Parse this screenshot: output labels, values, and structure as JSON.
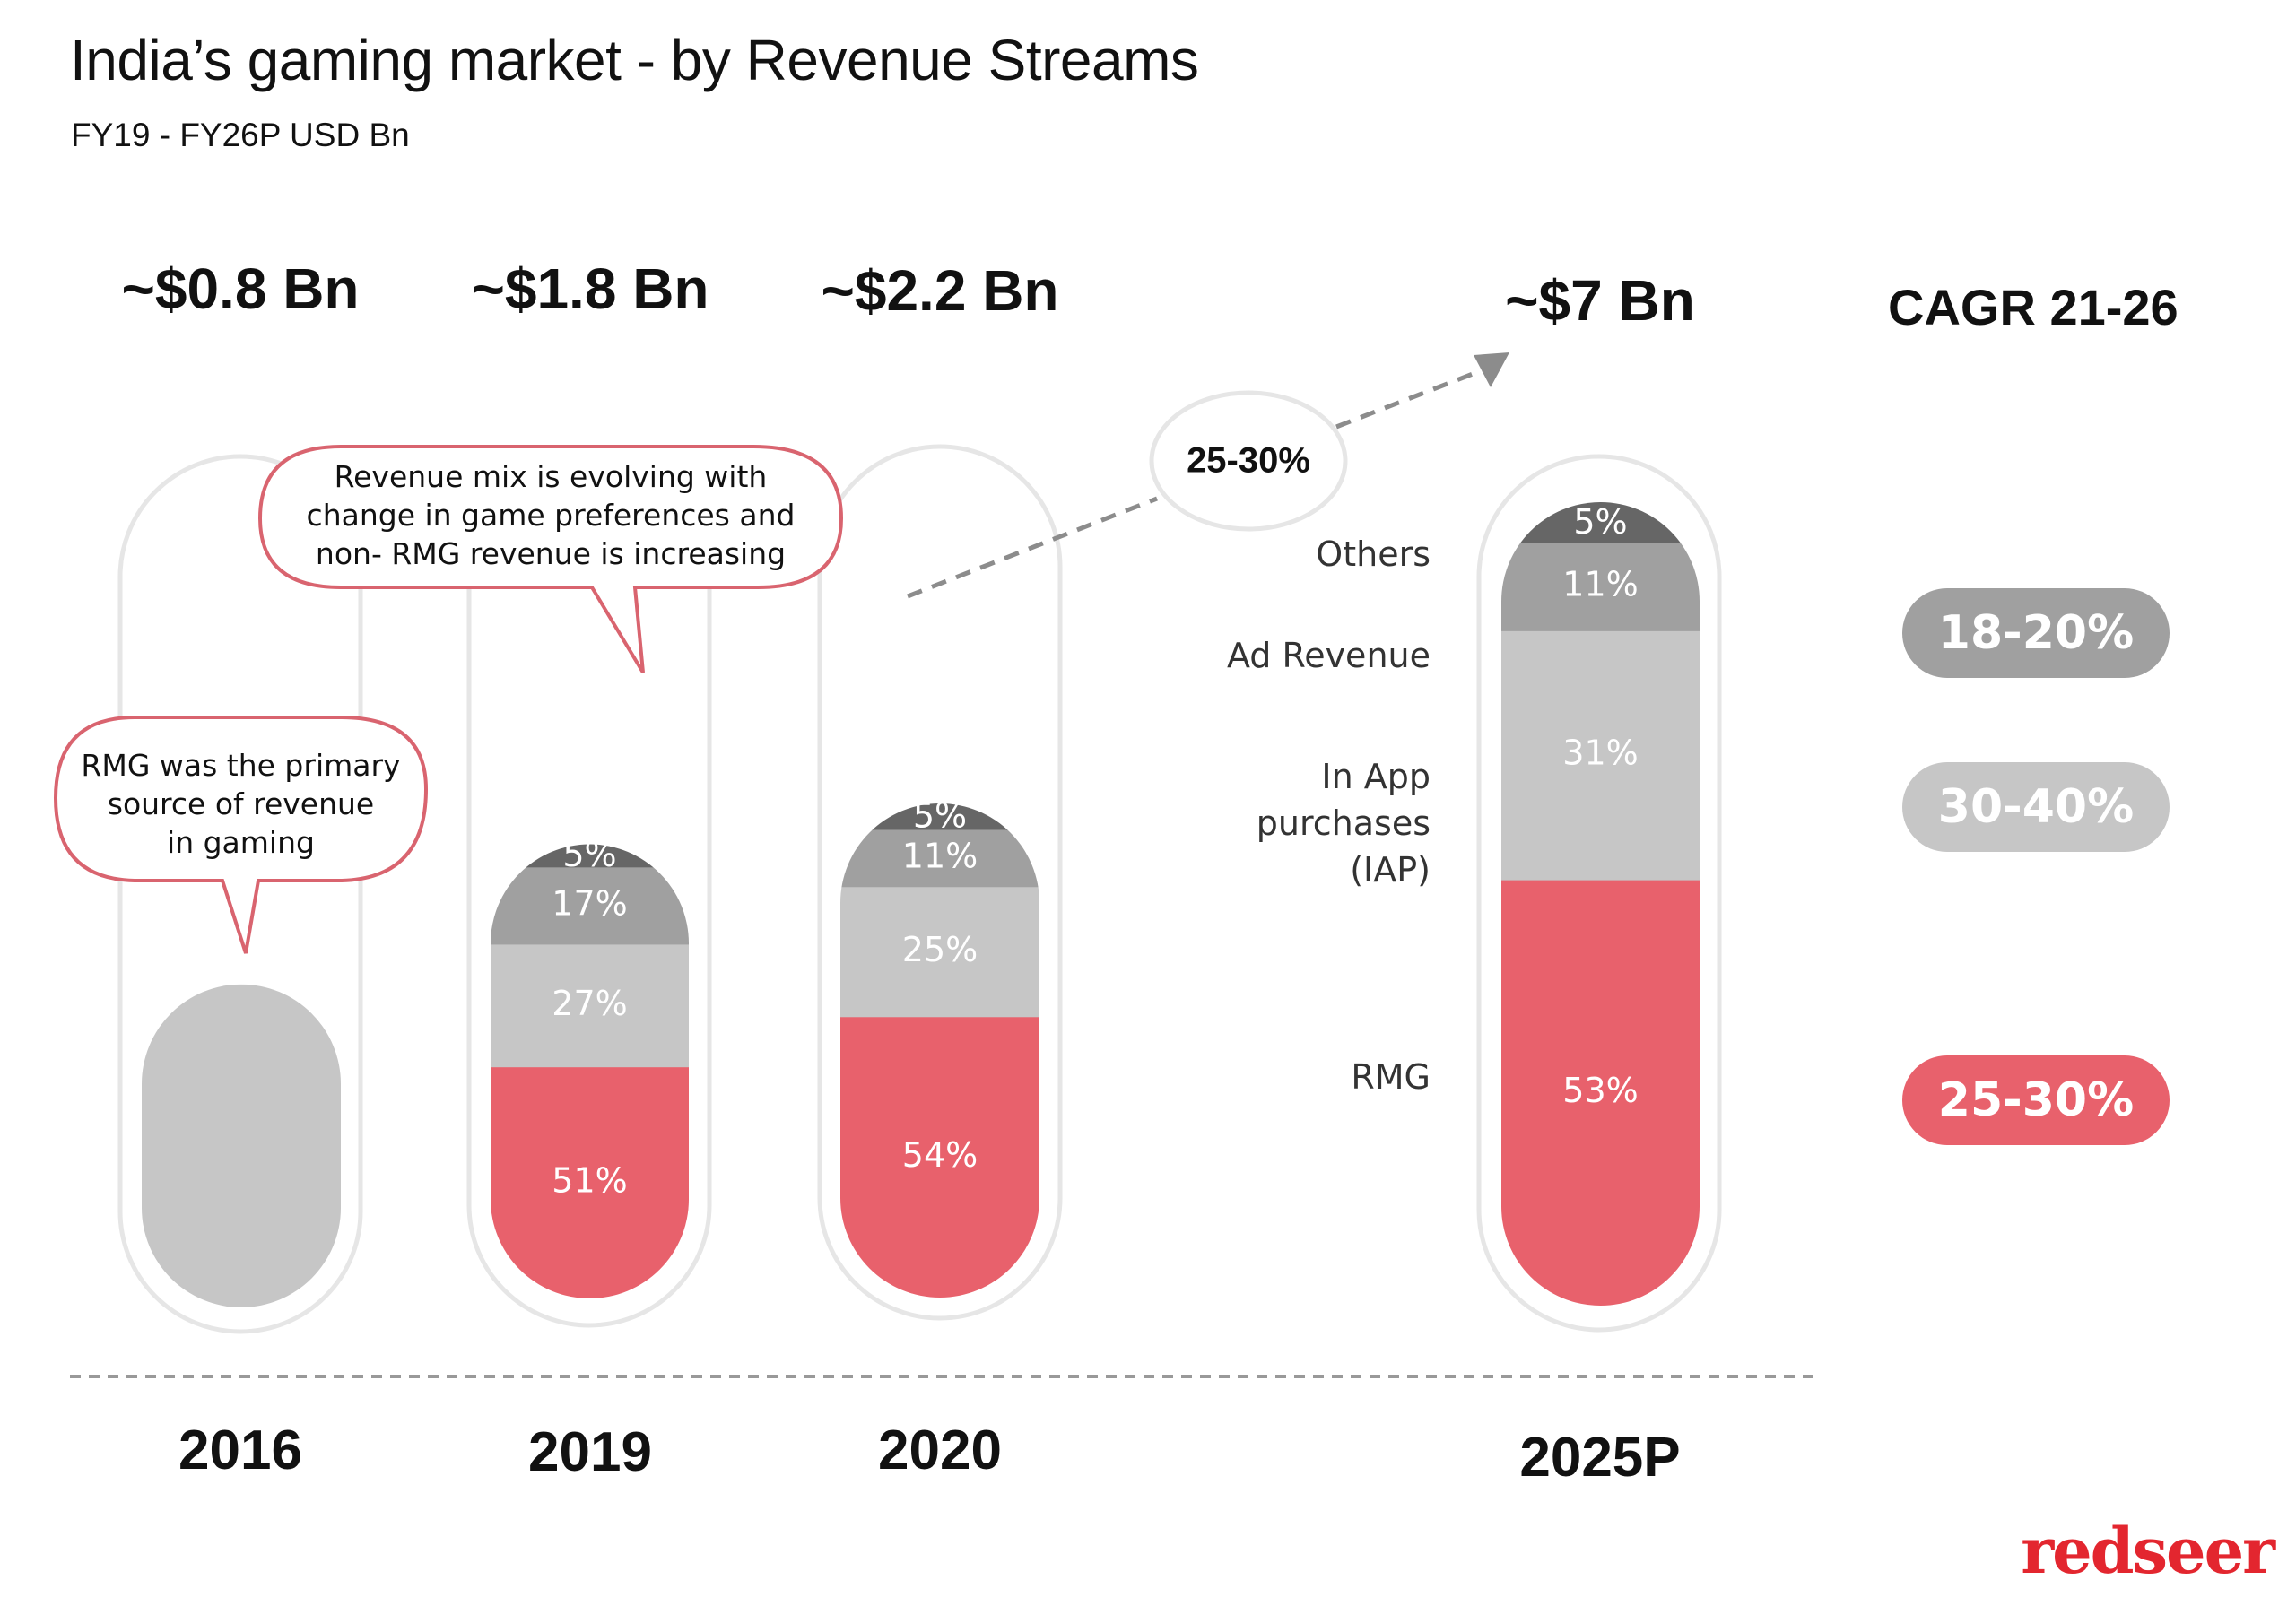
{
  "header": {
    "title": "India’s gaming market - by Revenue Streams",
    "subtitle": "FY19 - FY26P USD Bn"
  },
  "colors": {
    "others": "#666666",
    "ad_revenue": "#a0a0a0",
    "iap": "#c6c6c6",
    "rmg": "#e8616c",
    "outline": "#e6e6e6",
    "callout_border": "#d9646f",
    "dash": "#8c8c8c",
    "logo": "#e3262f"
  },
  "callouts": {
    "rmg_primary": [
      "RMG was the primary",
      "source of revenue",
      "in gaming"
    ],
    "mix_evolving": [
      "Revenue mix is evolving with",
      "change in game preferences and",
      "non- RMG revenue is increasing"
    ]
  },
  "growth_arrow": {
    "label": "25-30%"
  },
  "cagr": {
    "heading": "CAGR 21-26",
    "items": [
      {
        "stream": "Ad Revenue",
        "value": "18-20%",
        "color_key": "ad_revenue"
      },
      {
        "stream": "In App purchases (IAP)",
        "value": "30-40%",
        "color_key": "iap"
      },
      {
        "stream": "RMG",
        "value": "25-30%",
        "color_key": "rmg"
      }
    ]
  },
  "legend": {
    "others": "Others",
    "ad_revenue": "Ad Revenue",
    "iap": [
      "In App",
      "purchases",
      "(IAP)"
    ],
    "rmg": "RMG"
  },
  "logo": "redseer",
  "chart_data": {
    "type": "bar",
    "subtype": "stacked-100-percent",
    "title": "India’s gaming market - by Revenue Streams",
    "subtitle": "FY19 - FY26P USD Bn",
    "categories": [
      "2016",
      "2019",
      "2020",
      "2025P"
    ],
    "totals_label": [
      "~$0.8 Bn",
      "~$1.8 Bn",
      "~$2.2 Bn",
      "~$7 Bn"
    ],
    "totals_usd_bn": [
      0.8,
      1.8,
      2.2,
      7
    ],
    "series": [
      {
        "name": "RMG",
        "values": [
          null,
          51,
          54,
          53
        ]
      },
      {
        "name": "In App purchases (IAP)",
        "values": [
          null,
          27,
          25,
          31
        ]
      },
      {
        "name": "Ad Revenue",
        "values": [
          null,
          17,
          11,
          11
        ]
      },
      {
        "name": "Others",
        "values": [
          null,
          5,
          5,
          5
        ]
      }
    ],
    "segment_labels": [
      [],
      [
        "51%",
        "27%",
        "17%",
        "5%"
      ],
      [
        "54%",
        "25%",
        "11%",
        "5%"
      ],
      [
        "53%",
        "31%",
        "11%",
        "5%"
      ]
    ],
    "unit": "% share of revenue",
    "overall_cagr_label": "25-30%",
    "cagr_21_26": {
      "Ad Revenue": "18-20%",
      "In App purchases (IAP)": "30-40%",
      "RMG": "25-30%"
    },
    "legend_position": "left-of-last-bar",
    "grid": false
  }
}
